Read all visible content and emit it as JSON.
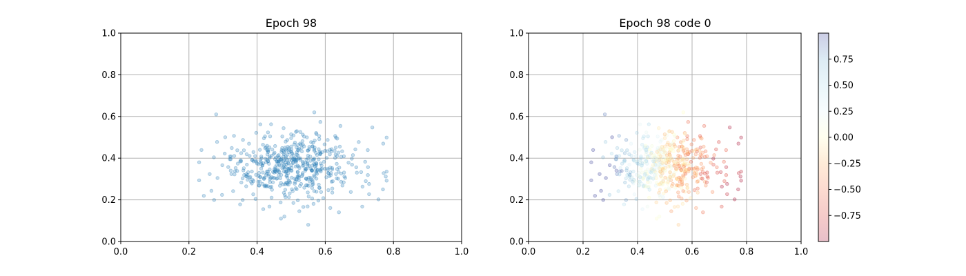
{
  "chart_data": [
    {
      "type": "scatter",
      "title": "Epoch 98",
      "xlabel": "",
      "ylabel": "",
      "xlim": [
        0.0,
        1.0
      ],
      "ylim": [
        0.0,
        1.0
      ],
      "xticks": [
        "0.0",
        "0.2",
        "0.4",
        "0.6",
        "0.8",
        "1.0"
      ],
      "yticks": [
        "0.0",
        "0.2",
        "0.4",
        "0.6",
        "0.8",
        "1.0"
      ],
      "grid": true,
      "marker_color": "#1f77b4",
      "marker_alpha": 0.25,
      "points_generation": {
        "count": 520,
        "x_mean": 0.5,
        "x_std": 0.1,
        "x_range": [
          0.23,
          0.78
        ],
        "y_mean": 0.36,
        "y_std": 0.085,
        "y_range": [
          0.08,
          0.62
        ],
        "seed": 98
      },
      "notable_points": [
        [
          0.28,
          0.61
        ],
        [
          0.55,
          0.08
        ],
        [
          0.64,
          0.14
        ],
        [
          0.48,
          0.12
        ],
        [
          0.77,
          0.47
        ],
        [
          0.23,
          0.38
        ]
      ]
    },
    {
      "type": "scatter",
      "title": "Epoch 98 code 0",
      "xlabel": "",
      "ylabel": "",
      "xlim": [
        0.0,
        1.0
      ],
      "ylim": [
        0.0,
        1.0
      ],
      "xticks": [
        "0.0",
        "0.2",
        "0.4",
        "0.6",
        "0.8",
        "1.0"
      ],
      "yticks": [
        "0.0",
        "0.2",
        "0.4",
        "0.6",
        "0.8",
        "1.0"
      ],
      "grid": true,
      "marker_alpha": 0.25,
      "color_mapping": "code value varies roughly linearly with x: blue (+1) at low x, red (-1) at high x",
      "colorbar": {
        "colormap": "RdYlBu",
        "range": [
          -1.0,
          1.0
        ],
        "ticks": [
          -0.75,
          -0.5,
          -0.25,
          0.0,
          0.25,
          0.5,
          0.75
        ],
        "tick_labels": [
          "−0.75",
          "−0.50",
          "−0.25",
          "0.00",
          "0.25",
          "0.50",
          "0.75"
        ]
      }
    }
  ]
}
